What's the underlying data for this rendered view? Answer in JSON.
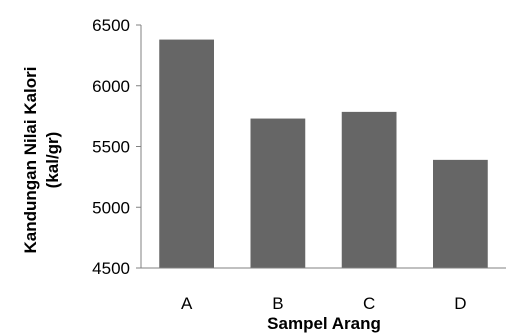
{
  "chart_data": {
    "type": "bar",
    "categories": [
      "A",
      "B",
      "C",
      "D"
    ],
    "values": [
      6380,
      5730,
      5785,
      5390
    ],
    "ylim": [
      4500,
      6500
    ],
    "yticks": [
      4500,
      5000,
      5500,
      6000,
      6500
    ],
    "xlabel": "Sampel Arang",
    "ylabel_lines": [
      "Kandungan Nilai Kalori",
      "(kal/gr)"
    ],
    "bar_color": "#666666",
    "grid": false,
    "legend": "none"
  }
}
